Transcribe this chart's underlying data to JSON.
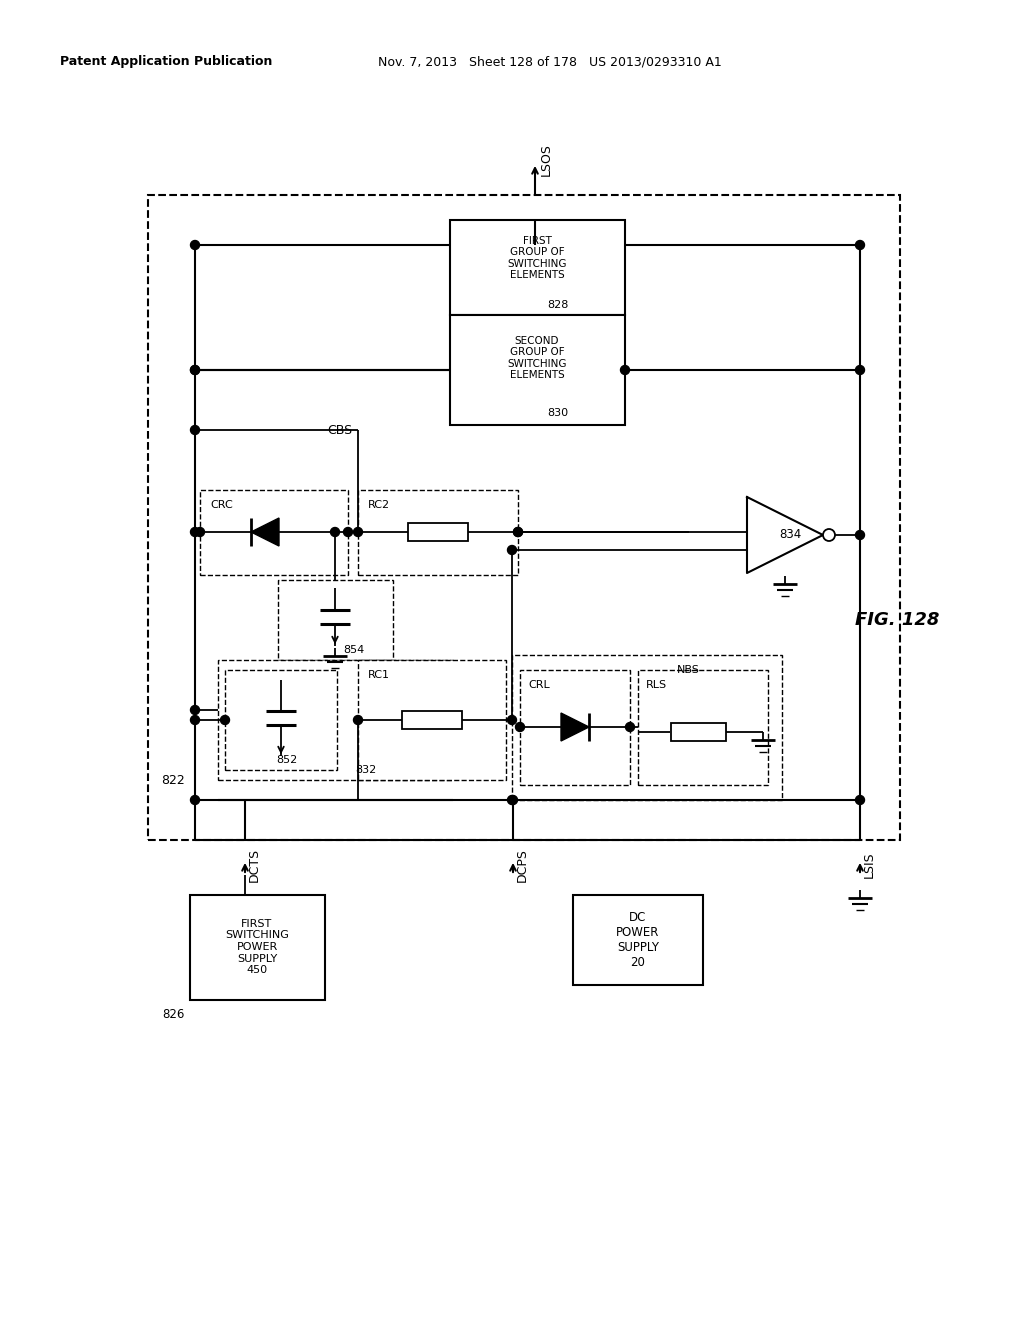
{
  "header_left": "Patent Application Publication",
  "header_right": "Nov. 7, 2013   Sheet 128 of 178   US 2013/0293310 A1",
  "fig_label": "FIG. 128",
  "bg_color": "#ffffff",
  "line_color": "#000000"
}
